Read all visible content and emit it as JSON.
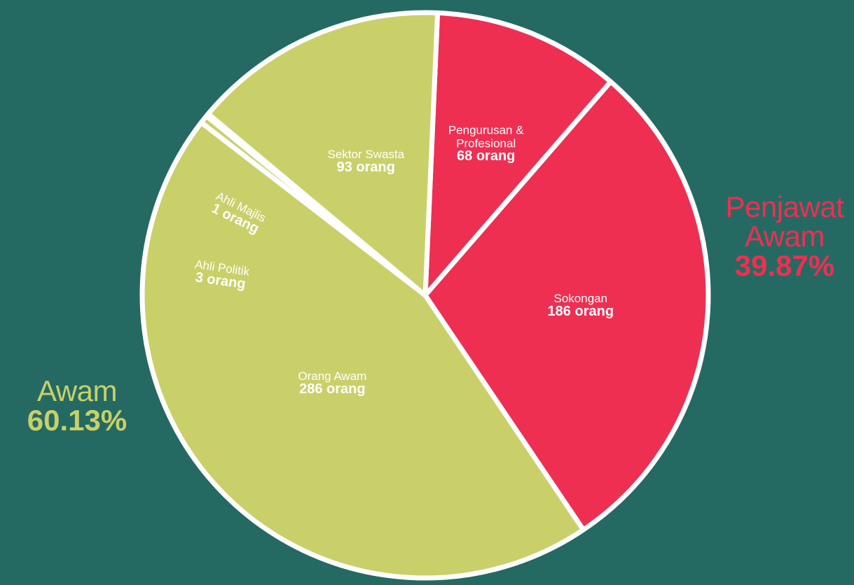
{
  "chart_data": {
    "type": "pie",
    "unit": "orang",
    "slices": [
      {
        "label": "Pengurusan & Profesional",
        "label_lines": [
          "Pengurusan &",
          "Profesional"
        ],
        "value": 68,
        "value_text": "68 orang",
        "group": "Penjawat Awam",
        "color": "#ee2f52"
      },
      {
        "label": "Sokongan",
        "label_lines": [
          "Sokongan"
        ],
        "value": 186,
        "value_text": "186 orang",
        "group": "Penjawat Awam",
        "color": "#ee2f52"
      },
      {
        "label": "Orang Awam",
        "label_lines": [
          "Orang Awam"
        ],
        "value": 286,
        "value_text": "286 orang",
        "group": "Awam",
        "color": "#c9d069"
      },
      {
        "label": "Ahli Politik",
        "label_lines": [
          "Ahli Politik"
        ],
        "value": 3,
        "value_text": "3 orang",
        "group": "Awam",
        "color": "#c9d069"
      },
      {
        "label": "Ahli Majlis",
        "label_lines": [
          "Ahli Majlis"
        ],
        "value": 1,
        "value_text": "1 orang",
        "group": "Awam",
        "color": "#c9d069"
      },
      {
        "label": "Sektor Swasta",
        "label_lines": [
          "Sektor Swasta"
        ],
        "value": 93,
        "value_text": "93 orang",
        "group": "Awam",
        "color": "#c9d069"
      }
    ],
    "groups": [
      {
        "name": "Awam",
        "percent": "60.13%",
        "color": "#c9d069"
      },
      {
        "name": "Penjawat Awam",
        "name_lines": [
          "Penjawat",
          "Awam"
        ],
        "percent": "39.87%",
        "color": "#ee2f52"
      }
    ]
  },
  "colors": {
    "background": "#246a62",
    "awam": "#c9d069",
    "penjawat": "#ee2f52",
    "separator": "#ffffff"
  }
}
